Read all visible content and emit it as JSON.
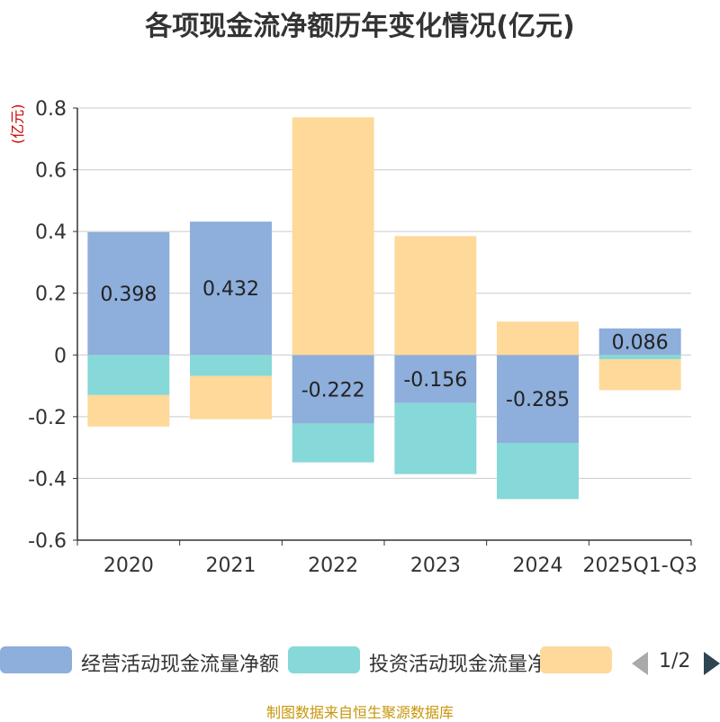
{
  "title": "各项现金流净额历年变化情况(亿元)",
  "unit_label": "(亿元)",
  "footer": "制图数据来自恒生聚源数据库",
  "legend": {
    "items": [
      {
        "label": "经营活动现金流量净额",
        "color": "#8eaedb"
      },
      {
        "label": "投资活动现金流量净额",
        "color": "#87d8d8"
      },
      {
        "label": "",
        "color": "#fed99a"
      }
    ],
    "page": "1/2"
  },
  "chart_data": {
    "type": "bar",
    "stacked": true,
    "title": "各项现金流净额历年变化情况(亿元)",
    "ylabel": "(亿元)",
    "ylim": [
      -0.6,
      0.8
    ],
    "yticks": [
      0.8,
      0.6,
      0.4,
      0.2,
      0,
      -0.2,
      -0.4,
      -0.6
    ],
    "ytick_labels": [
      "0.8",
      "0.6",
      "0.4",
      "0.2",
      "0",
      "-0.2",
      "-0.4",
      "-0.6"
    ],
    "categories": [
      "2020",
      "2021",
      "2022",
      "2023",
      "2024",
      "2025Q1-Q3"
    ],
    "grid": true,
    "series": [
      {
        "name": "经营活动现金流量净额",
        "color": "#8eaedb",
        "values": [
          0.398,
          0.432,
          -0.222,
          -0.156,
          -0.285,
          0.086
        ],
        "labels": [
          "0.398",
          "0.432",
          "-0.222",
          "-0.156",
          "-0.285",
          "0.086"
        ]
      },
      {
        "name": "投资活动现金流量净额",
        "color": "#87d8d8",
        "values": [
          -0.13,
          -0.068,
          -0.126,
          -0.23,
          -0.182,
          -0.014
        ]
      },
      {
        "name": "",
        "color": "#fed99a",
        "values": [
          -0.102,
          -0.14,
          0.77,
          0.385,
          0.108,
          -0.1
        ]
      }
    ]
  }
}
